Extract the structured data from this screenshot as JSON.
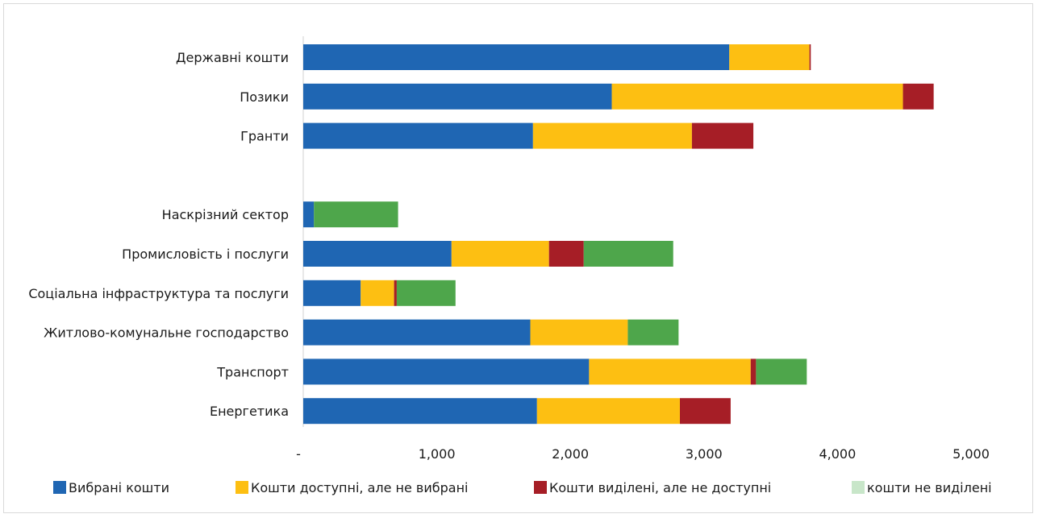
{
  "chart_data": {
    "type": "bar",
    "orientation": "horizontal",
    "stacked": true,
    "categories": [
      "Державні кошти",
      "Позики",
      "Гранти",
      "",
      "Наскрізний сектор",
      "Промисловість і послуги",
      "Соціальна інфраструктура та послуги",
      "Житлово-комунальне господарство",
      "Транспорт",
      "Енергетика"
    ],
    "series": [
      {
        "name": "Вибрані кошти",
        "color": "#1f66b3",
        "values": [
          3190,
          2310,
          1720,
          null,
          80,
          1110,
          430,
          1700,
          2140,
          1750
        ]
      },
      {
        "name": "Кошти доступні, але не вибрані",
        "color": "#fdbf12",
        "values": [
          600,
          2180,
          1190,
          null,
          0,
          730,
          250,
          730,
          1210,
          1070
        ]
      },
      {
        "name": "Кошти виділені, але не доступні",
        "color": "#a61e26",
        "values": [
          10,
          230,
          460,
          null,
          0,
          260,
          20,
          0,
          40,
          380
        ]
      },
      {
        "name": "кошти не виділені",
        "color": "#4ea64b",
        "legend_color": "#c8e6c9",
        "values": [
          0,
          0,
          0,
          null,
          630,
          670,
          440,
          380,
          380,
          0
        ]
      }
    ],
    "xlim": [
      0,
      5000
    ],
    "xticks": [
      0,
      1000,
      2000,
      3000,
      4000,
      5000
    ],
    "xtick_labels": [
      "-",
      "1,000",
      "2,000",
      "3,000",
      "4,000",
      "5,000"
    ],
    "grid": false,
    "legend": "bottom"
  }
}
